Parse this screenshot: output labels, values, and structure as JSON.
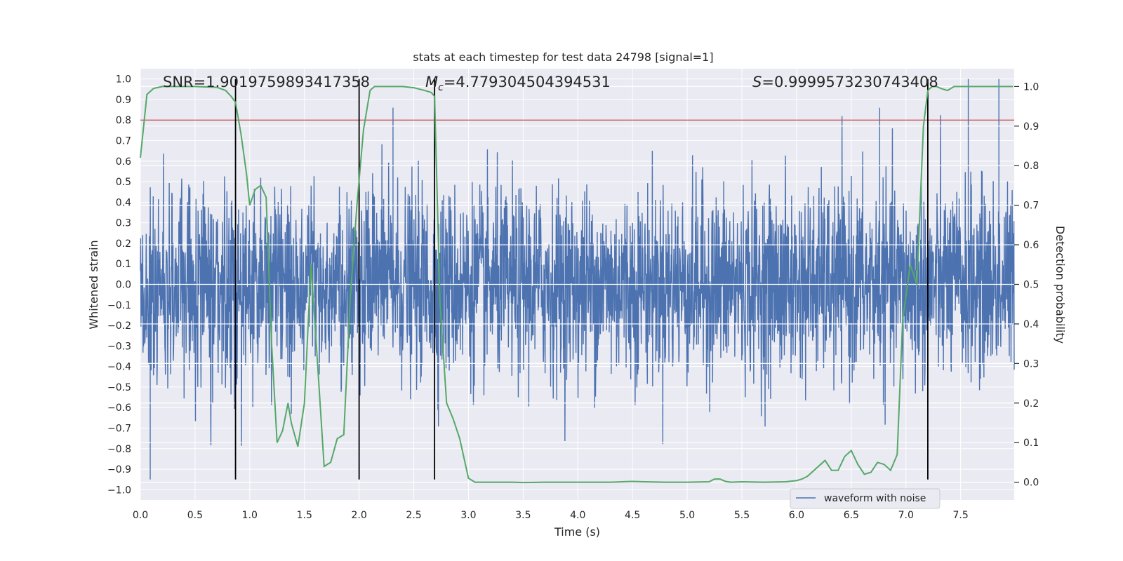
{
  "chart_data": {
    "type": "line",
    "title": "stats at each timestep for test data 24798 [signal=1]",
    "xlabel": "Time (s)",
    "ylabel": "Whitened strain",
    "y2label": "Detection probability",
    "xlim": [
      0.0,
      7.99
    ],
    "ylim": [
      -1.05,
      1.05
    ],
    "y2lim": [
      -0.045,
      1.045
    ],
    "xticks": [
      "0.0",
      "0.5",
      "1.0",
      "1.5",
      "2.0",
      "2.5",
      "3.0",
      "3.5",
      "4.0",
      "4.5",
      "5.0",
      "5.5",
      "6.0",
      "6.5",
      "7.0",
      "7.5"
    ],
    "yticks": [
      "1.0",
      "0.9",
      "0.8",
      "0.7",
      "0.6",
      "0.5",
      "0.4",
      "0.3",
      "0.2",
      "0.1",
      "0.0",
      "-0.1",
      "-0.2",
      "-0.3",
      "-0.4",
      "-0.5",
      "-0.6",
      "-0.7",
      "-0.8",
      "-0.9",
      "-1.0"
    ],
    "y2ticks": [
      "1.0",
      "0.9",
      "0.8",
      "0.7",
      "0.6",
      "0.5",
      "0.4",
      "0.3",
      "0.2",
      "0.1",
      "0.0"
    ],
    "annotations": {
      "snr": "SNR=1.9019759893417358",
      "mc_symbol": "M",
      "mc_sub": "c",
      "mc_value": "=4.779304504394531",
      "s_symbol": "S",
      "s_value": "=0.9999573230743408"
    },
    "threshold_y": 0.8,
    "event_lines_x": [
      0.87,
      2.0,
      2.69,
      7.2
    ],
    "event_line_range": [
      -0.95,
      1.0
    ],
    "legend": {
      "placement": "lower-right",
      "label": "waveform with noise"
    },
    "grid": true,
    "series": [
      {
        "name": "waveform with noise",
        "kind": "waveform",
        "approx_envelope": "noisy strain oscillating within about -0.95 to 0.98, occasional peaks near 0.98-1.0",
        "peaks": [
          {
            "x": 0.09,
            "y": -0.95
          },
          {
            "x": 2.31,
            "y": 0.86
          },
          {
            "x": 6.76,
            "y": 0.86
          },
          {
            "x": 7.57,
            "y": 1.0
          },
          {
            "x": 7.85,
            "y": 1.0
          }
        ]
      },
      {
        "name": "detection probability",
        "kind": "probability",
        "axis": "right",
        "x": [
          0.0,
          0.06,
          0.12,
          0.2,
          0.3,
          0.4,
          0.5,
          0.6,
          0.7,
          0.78,
          0.83,
          0.87,
          0.92,
          0.97,
          1.0,
          1.05,
          1.1,
          1.15,
          1.2,
          1.25,
          1.3,
          1.35,
          1.38,
          1.44,
          1.5,
          1.56,
          1.62,
          1.68,
          1.74,
          1.8,
          1.86,
          1.92,
          1.98,
          2.04,
          2.1,
          2.14,
          2.2,
          2.3,
          2.4,
          2.5,
          2.6,
          2.66,
          2.69,
          2.74,
          2.8,
          2.86,
          2.92,
          3.0,
          3.06,
          3.2,
          3.4,
          3.5,
          3.7,
          3.9,
          4.1,
          4.3,
          4.5,
          4.6,
          4.8,
          5.0,
          5.2,
          5.25,
          5.3,
          5.35,
          5.4,
          5.5,
          5.7,
          5.9,
          6.0,
          6.05,
          6.1,
          6.18,
          6.26,
          6.32,
          6.38,
          6.44,
          6.5,
          6.56,
          6.62,
          6.68,
          6.74,
          6.8,
          6.86,
          6.92,
          6.97,
          7.04,
          7.1,
          7.16,
          7.2,
          7.24,
          7.28,
          7.32,
          7.38,
          7.44,
          7.5,
          7.56,
          7.62,
          7.7,
          7.8,
          7.9,
          7.98
        ],
        "y": [
          0.82,
          0.98,
          0.995,
          1.0,
          1.0,
          1.0,
          1.0,
          0.999,
          0.998,
          0.99,
          0.975,
          0.96,
          0.88,
          0.78,
          0.7,
          0.74,
          0.75,
          0.72,
          0.35,
          0.1,
          0.13,
          0.2,
          0.15,
          0.09,
          0.2,
          0.55,
          0.3,
          0.04,
          0.05,
          0.11,
          0.12,
          0.47,
          0.7,
          0.89,
          0.99,
          1.0,
          1.0,
          1.0,
          1.0,
          0.997,
          0.99,
          0.985,
          0.975,
          0.45,
          0.2,
          0.16,
          0.11,
          0.01,
          0.0,
          0.0,
          0.0,
          -0.001,
          0.0,
          0.0,
          0.0,
          0.0,
          0.002,
          0.001,
          0.0,
          0.0,
          0.001,
          0.008,
          0.008,
          0.002,
          0.0,
          0.001,
          0.0,
          0.001,
          0.004,
          0.008,
          0.015,
          0.035,
          0.055,
          0.03,
          0.03,
          0.065,
          0.08,
          0.045,
          0.02,
          0.025,
          0.05,
          0.045,
          0.03,
          0.07,
          0.41,
          0.55,
          0.5,
          0.9,
          0.99,
          1.0,
          1.0,
          0.995,
          0.99,
          1.0,
          1.0,
          1.0,
          1.0,
          1.0,
          1.0,
          1.0,
          1.0
        ]
      }
    ]
  },
  "colors": {
    "plot_bg": "#eaeaf2",
    "grid": "#ffffff",
    "waveform": "#4c72b0",
    "probability": "#55a868",
    "threshold": "#c44e52",
    "event_line": "#000000",
    "text": "#262626"
  }
}
